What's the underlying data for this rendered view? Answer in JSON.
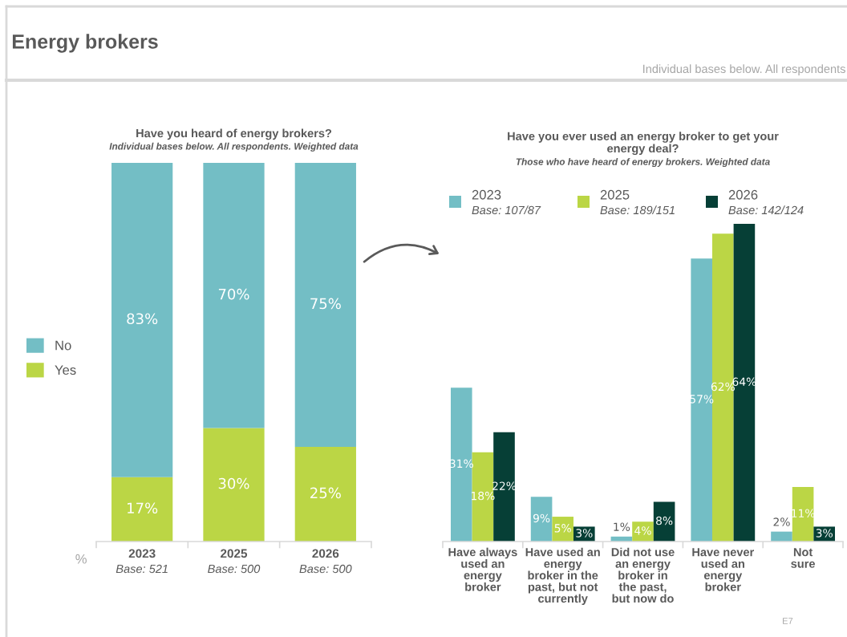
{
  "chart_data": [
    {
      "type": "other",
      "title": "Energy brokers",
      "subtitle": "Individual bases below. All respondents"
    },
    {
      "type": "bar",
      "stacked": true,
      "title": "Have you heard of energy brokers?",
      "subtitle": "Individual bases below. All respondents. Weighted data",
      "ylabel": "%",
      "categories": [
        "2023\nBase: 521",
        "2025\nBase: 500",
        "2026\nBase: 500"
      ],
      "series": [
        {
          "name": "Yes",
          "color": "#bbd645",
          "values": [
            17,
            30,
            25
          ],
          "value_labels": [
            "17%",
            "30%",
            "25%"
          ]
        },
        {
          "name": "No",
          "color": "#73bec5",
          "values": [
            83,
            70,
            75
          ],
          "value_labels": [
            "83%",
            "70%",
            "75%"
          ]
        }
      ],
      "ylim": [
        0,
        100
      ],
      "tick_labels": "x",
      "legend": "left"
    },
    {
      "type": "bar",
      "title": "Have you ever used an energy broker to get your\nenergy deal?",
      "subtitle": "Those who have heard of energy brokers. Weighted data",
      "categories": [
        "Have always\nused an\nenergy\nbroker",
        "Have used an\nenergy\nbroker in the\npast, but not\ncurrently",
        "Did not use\nan energy\nbroker in\nthe past,\nbut now do",
        "Have never\nused an\nenergy\nbroker",
        "Not\nsure"
      ],
      "series": [
        {
          "name": "2023\nBase: 107/87",
          "color": "#73bec5",
          "values": [
            31,
            9,
            1,
            57,
            2
          ],
          "value_labels": [
            "31%",
            "9%",
            "1%",
            "57%",
            "2%"
          ]
        },
        {
          "name": "2025\nBase: 189/151",
          "color": "#bbd645",
          "values": [
            18,
            5,
            4,
            62,
            11
          ],
          "value_labels": [
            "18%",
            "5%",
            "4%",
            "62%",
            "11%"
          ]
        },
        {
          "name": "2026\nBase: 142/124",
          "color": "#063f36",
          "values": [
            22,
            3,
            8,
            64,
            3
          ],
          "value_labels": [
            "22%",
            "3%",
            "8%",
            "64%",
            "3%"
          ]
        }
      ],
      "ylim": [
        0,
        64
      ],
      "tick_labels": "x",
      "legend": "top",
      "annotations": [
        "E7"
      ]
    }
  ]
}
